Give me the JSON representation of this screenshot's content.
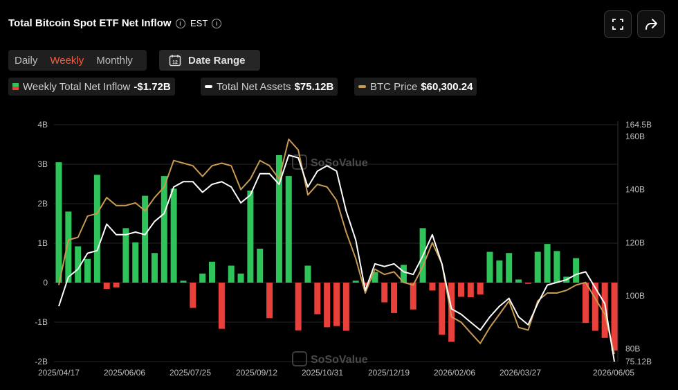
{
  "header": {
    "title": "Total Bitcoin Spot ETF Net Inflow",
    "timezone": "EST"
  },
  "period_tabs": [
    "Daily",
    "Weekly",
    "Monthly"
  ],
  "active_tab": "Weekly",
  "date_range_label": "Date Range",
  "date_range_icon_text": "12",
  "icons": [
    "info-icon",
    "calendar-icon",
    "fullscreen-icon",
    "share-icon"
  ],
  "legend": [
    {
      "label": "Weekly Total Net Inflow",
      "value": "-$1.72B"
    },
    {
      "label": "Total Net Assets",
      "value": "$75.12B"
    },
    {
      "label": "BTC Price",
      "value": "$60,300.24"
    }
  ],
  "watermark": "SoSoValue",
  "colors": {
    "inflow": "#2fc45a",
    "outflow": "#e8413b",
    "assets": "#ffffff",
    "price": "#c89a52",
    "active_tab": "#ff5a3c"
  },
  "chart_data": {
    "type": "bar",
    "x_labels": [
      "2025/04/17",
      "2025/06/06",
      "2025/07/25",
      "2025/09/12",
      "2025/10/31",
      "2025/12/19",
      "2026/02/06",
      "2026/03/27",
      "2026/06/05"
    ],
    "series": [
      {
        "name": "Weekly Total Net Inflow",
        "type": "bar",
        "axis": "left",
        "unit": "B",
        "values": [
          3.05,
          1.8,
          0.92,
          0.6,
          2.73,
          -0.16,
          -0.12,
          1.38,
          1.02,
          2.2,
          0.75,
          2.7,
          2.38,
          0.05,
          -0.64,
          0.23,
          0.53,
          -1.17,
          0.43,
          0.23,
          2.33,
          0.86,
          -0.9,
          3.23,
          2.7,
          -1.21,
          0.43,
          -0.8,
          -1.13,
          -1.1,
          -1.22,
          0.05,
          -0.08,
          0.27,
          -0.5,
          -0.77,
          0.45,
          -0.68,
          1.38,
          -0.2,
          -1.32,
          -1.5,
          -0.36,
          -0.37,
          -0.3,
          0.78,
          0.56,
          0.75,
          0.08,
          -0.03,
          0.78,
          0.98,
          0.8,
          0.15,
          0.62,
          -1.02,
          -1.22,
          -1.4,
          -1.72
        ]
      },
      {
        "name": "Total Net Assets",
        "type": "line",
        "axis": "right",
        "unit": "B",
        "values": [
          96,
          107,
          110,
          116,
          117,
          127,
          123,
          123,
          124,
          123,
          128,
          131,
          141,
          143,
          143,
          139,
          142,
          143,
          141,
          135,
          138,
          146,
          146,
          142,
          153,
          152,
          141,
          147,
          149,
          147,
          132,
          121,
          102,
          112,
          111,
          112,
          109,
          108,
          115,
          123,
          112,
          95,
          93,
          90,
          87,
          92,
          96,
          99,
          92,
          89,
          97,
          104,
          105,
          106,
          108,
          109,
          103,
          97,
          75.12
        ]
      },
      {
        "name": "BTC Price",
        "type": "line",
        "axis": "right",
        "unit": "USD",
        "values": [
          104,
          121,
          122,
          130,
          131,
          137,
          134,
          134,
          135,
          132,
          137,
          141,
          151,
          150,
          149,
          145,
          149,
          150,
          149,
          140,
          144,
          151,
          149,
          144,
          159,
          155,
          138,
          142,
          141,
          136,
          124,
          114,
          101,
          110,
          108,
          109,
          105,
          104,
          111,
          120,
          112,
          92,
          90,
          86,
          82,
          88,
          93,
          98,
          88,
          87,
          98,
          101,
          101,
          102,
          104,
          105,
          99,
          93,
          78
        ]
      }
    ],
    "left_axis": {
      "ticks": [
        "4B",
        "3B",
        "2B",
        "1B",
        "0",
        "-1B",
        "-2B"
      ],
      "range": [
        -2,
        4
      ]
    },
    "right_axis": {
      "ticks": [
        "164.5B",
        "160B",
        "140B",
        "120B",
        "100B",
        "80B",
        "75.12B"
      ],
      "range": [
        75.12,
        164.5
      ]
    },
    "grid": true
  }
}
